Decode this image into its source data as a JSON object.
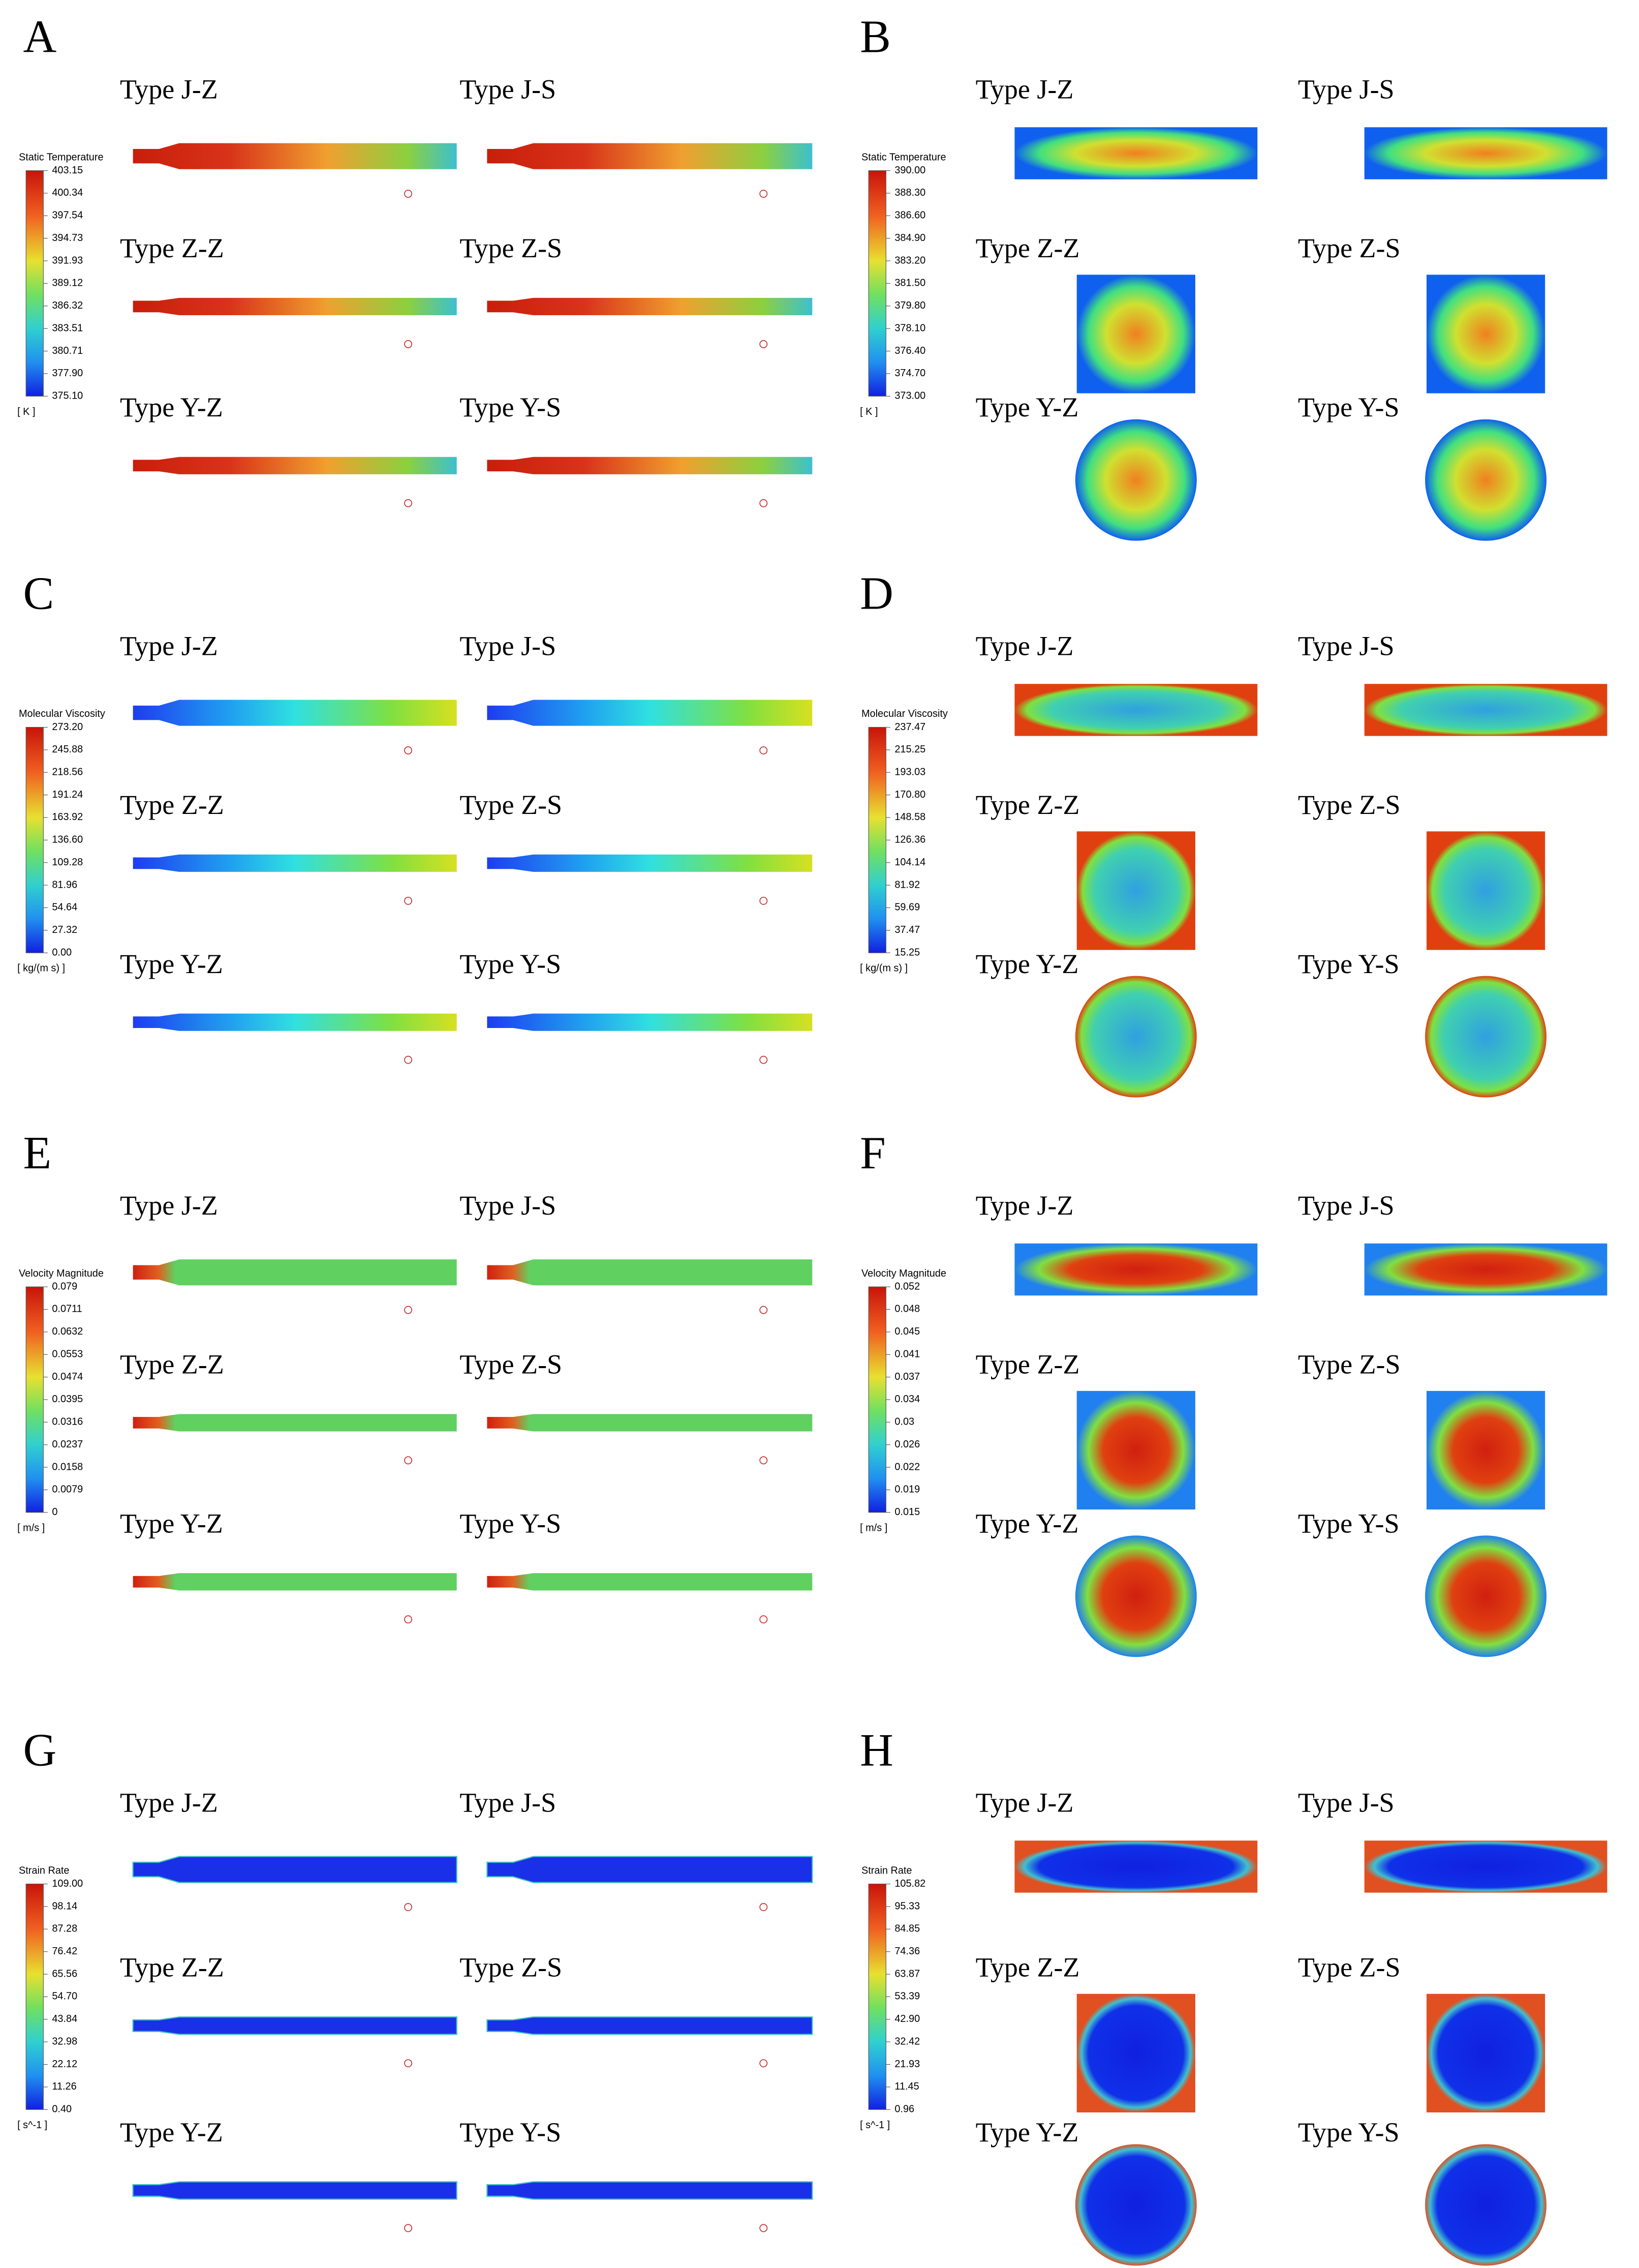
{
  "panels": [
    {
      "letter": "A",
      "legend": {
        "title": "Static Temperature",
        "ticks": [
          "403.15",
          "400.34",
          "397.54",
          "394.73",
          "391.93",
          "389.12",
          "386.32",
          "383.51",
          "380.71",
          "377.90",
          "375.10"
        ],
        "unit": "[ K ]"
      },
      "types": [
        "Type J-Z",
        "Type J-S",
        "Type Z-Z",
        "Type Z-S",
        "Type Y-Z",
        "Type Y-S"
      ]
    },
    {
      "letter": "B",
      "legend": {
        "title": "Static Temperature",
        "ticks": [
          "390.00",
          "388.30",
          "386.60",
          "384.90",
          "383.20",
          "381.50",
          "379.80",
          "378.10",
          "376.40",
          "374.70",
          "373.00"
        ],
        "unit": "[ K ]"
      },
      "types": [
        "Type J-Z",
        "Type J-S",
        "Type Z-Z",
        "Type Z-S",
        "Type Y-Z",
        "Type Y-S"
      ]
    },
    {
      "letter": "C",
      "legend": {
        "title": "Molecular Viscosity",
        "ticks": [
          "273.20",
          "245.88",
          "218.56",
          "191.24",
          "163.92",
          "136.60",
          "109.28",
          "81.96",
          "54.64",
          "27.32",
          "0.00"
        ],
        "unit": "[ kg/(m s) ]"
      },
      "types": [
        "Type J-Z",
        "Type J-S",
        "Type Z-Z",
        "Type Z-S",
        "Type Y-Z",
        "Type Y-S"
      ]
    },
    {
      "letter": "D",
      "legend": {
        "title": "Molecular Viscosity",
        "ticks": [
          "237.47",
          "215.25",
          "193.03",
          "170.80",
          "148.58",
          "126.36",
          "104.14",
          "81.92",
          "59.69",
          "37.47",
          "15.25"
        ],
        "unit": "[ kg/(m s) ]"
      },
      "types": [
        "Type J-Z",
        "Type J-S",
        "Type Z-Z",
        "Type Z-S",
        "Type Y-Z",
        "Type Y-S"
      ]
    },
    {
      "letter": "E",
      "legend": {
        "title": "Velocity Magnitude",
        "ticks": [
          "0.079",
          "0.0711",
          "0.0632",
          "0.0553",
          "0.0474",
          "0.0395",
          "0.0316",
          "0.0237",
          "0.0158",
          "0.0079",
          "0"
        ],
        "unit": "[ m/s ]"
      },
      "types": [
        "Type J-Z",
        "Type J-S",
        "Type Z-Z",
        "Type Z-S",
        "Type Y-Z",
        "Type Y-S"
      ]
    },
    {
      "letter": "F",
      "legend": {
        "title": "Velocity Magnitude",
        "ticks": [
          "0.052",
          "0.048",
          "0.045",
          "0.041",
          "0.037",
          "0.034",
          "0.03",
          "0.026",
          "0.022",
          "0.019",
          "0.015"
        ],
        "unit": "[ m/s ]"
      },
      "types": [
        "Type J-Z",
        "Type J-S",
        "Type Z-Z",
        "Type Z-S",
        "Type Y-Z",
        "Type Y-S"
      ]
    },
    {
      "letter": "G",
      "legend": {
        "title": "Strain Rate",
        "ticks": [
          "109.00",
          "98.14",
          "87.28",
          "76.42",
          "65.56",
          "54.70",
          "43.84",
          "32.98",
          "22.12",
          "11.26",
          "0.40"
        ],
        "unit": "[ s^-1 ]"
      },
      "types": [
        "Type J-Z",
        "Type J-S",
        "Type Z-Z",
        "Type Z-S",
        "Type Y-Z",
        "Type Y-S"
      ]
    },
    {
      "letter": "H",
      "legend": {
        "title": "Strain Rate",
        "ticks": [
          "105.82",
          "95.33",
          "84.85",
          "74.36",
          "63.87",
          "53.39",
          "42.90",
          "32.42",
          "21.93",
          "11.45",
          "0.96"
        ],
        "unit": "[ s^-1 ]"
      },
      "types": [
        "Type J-Z",
        "Type J-S",
        "Type Z-Z",
        "Type Z-S",
        "Type Y-Z",
        "Type Y-S"
      ]
    }
  ]
}
